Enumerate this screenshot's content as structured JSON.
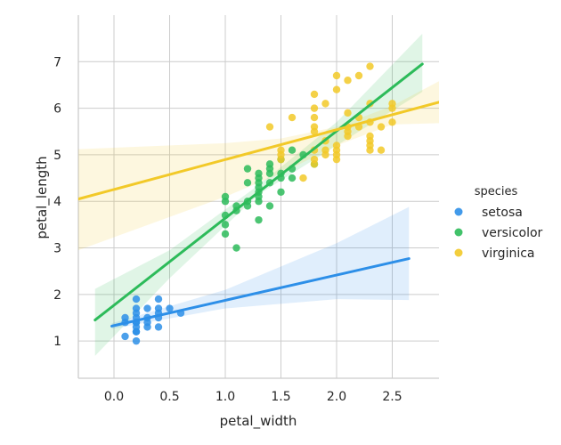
{
  "chart_data": {
    "type": "scatter",
    "xlabel": "petal_width",
    "ylabel": "petal_length",
    "xlim": [
      -0.32,
      2.92
    ],
    "ylim": [
      0.2,
      8.0
    ],
    "xticks": [
      "0.0",
      "0.5",
      "1.0",
      "1.5",
      "2.0",
      "2.5"
    ],
    "xtick_values": [
      0,
      0.5,
      1.0,
      1.5,
      2.0,
      2.5
    ],
    "yticks": [
      "1",
      "2",
      "3",
      "4",
      "5",
      "6",
      "7"
    ],
    "ytick_values": [
      1,
      2,
      3,
      4,
      5,
      6,
      7
    ],
    "grid": true,
    "legend_title": "species",
    "legend_position": "right",
    "series": [
      {
        "name": "setosa",
        "color": "#2d8fe8",
        "points": [
          [
            0.1,
            1.4
          ],
          [
            0.1,
            1.5
          ],
          [
            0.1,
            1.1
          ],
          [
            0.2,
            1.0
          ],
          [
            0.2,
            1.2
          ],
          [
            0.2,
            1.3
          ],
          [
            0.2,
            1.4
          ],
          [
            0.2,
            1.5
          ],
          [
            0.2,
            1.6
          ],
          [
            0.2,
            1.7
          ],
          [
            0.2,
            1.9
          ],
          [
            0.2,
            1.2
          ],
          [
            0.2,
            1.4
          ],
          [
            0.3,
            1.3
          ],
          [
            0.3,
            1.4
          ],
          [
            0.3,
            1.5
          ],
          [
            0.3,
            1.7
          ],
          [
            0.4,
            1.3
          ],
          [
            0.4,
            1.5
          ],
          [
            0.4,
            1.6
          ],
          [
            0.4,
            1.7
          ],
          [
            0.4,
            1.9
          ],
          [
            0.5,
            1.7
          ],
          [
            0.6,
            1.6
          ]
        ],
        "fit": {
          "x": [
            -0.02,
            2.65
          ],
          "y": [
            1.32,
            2.77
          ]
        },
        "ci_upper": [
          [
            -0.02,
            1.38
          ],
          [
            1.0,
            2.1
          ],
          [
            2.0,
            3.1
          ],
          [
            2.65,
            3.88
          ]
        ],
        "ci_lower": [
          [
            -0.02,
            1.26
          ],
          [
            1.0,
            1.7
          ],
          [
            2.0,
            1.9
          ],
          [
            2.65,
            1.88
          ]
        ]
      },
      {
        "name": "versicolor",
        "color": "#2dbb5a",
        "points": [
          [
            1.0,
            3.3
          ],
          [
            1.0,
            3.5
          ],
          [
            1.0,
            3.7
          ],
          [
            1.0,
            4.0
          ],
          [
            1.0,
            4.1
          ],
          [
            1.1,
            3.0
          ],
          [
            1.1,
            3.8
          ],
          [
            1.1,
            3.9
          ],
          [
            1.2,
            3.9
          ],
          [
            1.2,
            4.0
          ],
          [
            1.2,
            4.4
          ],
          [
            1.2,
            4.7
          ],
          [
            1.3,
            3.6
          ],
          [
            1.3,
            4.0
          ],
          [
            1.3,
            4.1
          ],
          [
            1.3,
            4.2
          ],
          [
            1.3,
            4.3
          ],
          [
            1.3,
            4.4
          ],
          [
            1.3,
            4.5
          ],
          [
            1.3,
            4.6
          ],
          [
            1.4,
            3.9
          ],
          [
            1.4,
            4.4
          ],
          [
            1.4,
            4.6
          ],
          [
            1.4,
            4.7
          ],
          [
            1.4,
            4.8
          ],
          [
            1.5,
            4.2
          ],
          [
            1.5,
            4.5
          ],
          [
            1.5,
            4.6
          ],
          [
            1.5,
            4.9
          ],
          [
            1.6,
            4.5
          ],
          [
            1.6,
            4.7
          ],
          [
            1.6,
            5.1
          ],
          [
            1.7,
            5.0
          ],
          [
            1.8,
            4.8
          ]
        ],
        "fit": {
          "x": [
            -0.17,
            2.77
          ],
          "y": [
            1.45,
            6.95
          ]
        },
        "ci_upper": [
          [
            -0.17,
            2.12
          ],
          [
            0.5,
            2.95
          ],
          [
            1.3,
            4.35
          ],
          [
            2.0,
            5.7
          ],
          [
            2.77,
            7.6
          ]
        ],
        "ci_lower": [
          [
            -0.17,
            0.68
          ],
          [
            0.5,
            2.35
          ],
          [
            1.3,
            4.15
          ],
          [
            2.0,
            5.2
          ],
          [
            2.77,
            6.35
          ]
        ]
      },
      {
        "name": "virginica",
        "color": "#f2c928",
        "points": [
          [
            1.4,
            5.6
          ],
          [
            1.5,
            4.9
          ],
          [
            1.5,
            5.0
          ],
          [
            1.5,
            5.1
          ],
          [
            1.6,
            5.8
          ],
          [
            1.7,
            4.5
          ],
          [
            1.8,
            4.8
          ],
          [
            1.8,
            4.9
          ],
          [
            1.8,
            5.1
          ],
          [
            1.8,
            5.5
          ],
          [
            1.8,
            5.6
          ],
          [
            1.8,
            5.8
          ],
          [
            1.8,
            6.0
          ],
          [
            1.8,
            6.3
          ],
          [
            1.9,
            5.0
          ],
          [
            1.9,
            5.1
          ],
          [
            1.9,
            5.3
          ],
          [
            1.9,
            6.1
          ],
          [
            2.0,
            4.9
          ],
          [
            2.0,
            5.0
          ],
          [
            2.0,
            5.1
          ],
          [
            2.0,
            5.2
          ],
          [
            2.0,
            6.4
          ],
          [
            2.0,
            6.7
          ],
          [
            2.1,
            5.4
          ],
          [
            2.1,
            5.5
          ],
          [
            2.1,
            5.6
          ],
          [
            2.1,
            5.9
          ],
          [
            2.1,
            6.6
          ],
          [
            2.2,
            5.6
          ],
          [
            2.2,
            5.8
          ],
          [
            2.2,
            6.7
          ],
          [
            2.3,
            5.1
          ],
          [
            2.3,
            5.2
          ],
          [
            2.3,
            5.3
          ],
          [
            2.3,
            5.4
          ],
          [
            2.3,
            5.7
          ],
          [
            2.3,
            6.1
          ],
          [
            2.3,
            6.9
          ],
          [
            2.4,
            5.1
          ],
          [
            2.4,
            5.6
          ],
          [
            2.5,
            5.7
          ],
          [
            2.5,
            6.0
          ],
          [
            2.5,
            6.1
          ]
        ],
        "fit": {
          "x": [
            -0.32,
            2.92
          ],
          "y": [
            4.05,
            6.13
          ]
        },
        "ci_upper": [
          [
            -0.32,
            5.12
          ],
          [
            1.0,
            5.25
          ],
          [
            1.5,
            5.35
          ],
          [
            2.0,
            5.6
          ],
          [
            2.5,
            6.05
          ],
          [
            2.92,
            6.58
          ]
        ],
        "ci_lower": [
          [
            -0.32,
            2.95
          ],
          [
            1.0,
            4.1
          ],
          [
            1.5,
            4.6
          ],
          [
            2.0,
            5.2
          ],
          [
            2.5,
            5.65
          ],
          [
            2.92,
            5.68
          ]
        ]
      }
    ]
  }
}
